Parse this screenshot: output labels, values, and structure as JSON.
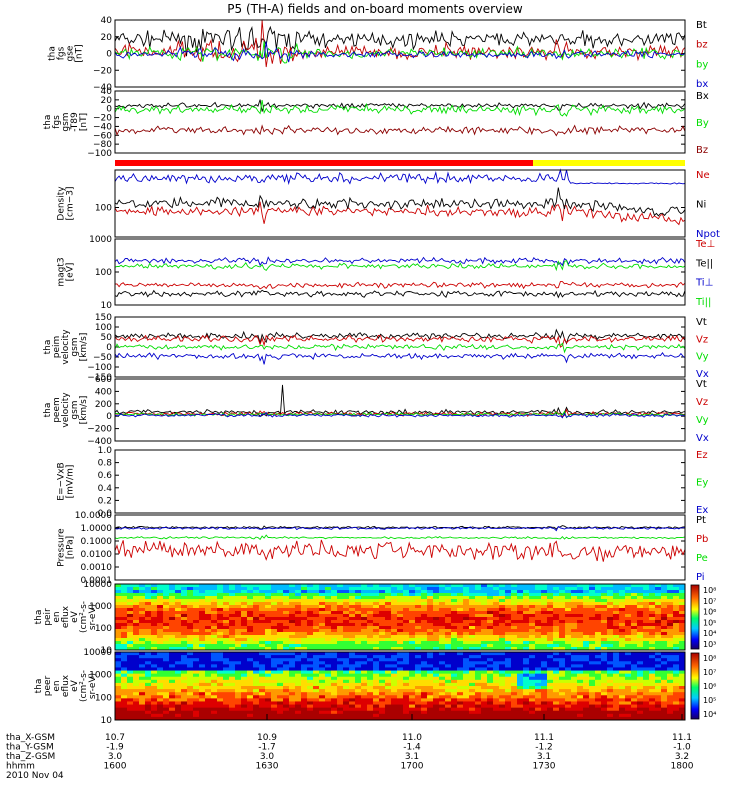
{
  "title": "P5 (TH-A) fields and on-board moments overview",
  "footer": {
    "rows": [
      {
        "label": "tha_X-GSM",
        "values": [
          "10.7",
          "10.9",
          "11.0",
          "11.1",
          "11.1"
        ]
      },
      {
        "label": "tha_Y-GSM",
        "values": [
          "-1.9",
          "-1.7",
          "-1.4",
          "-1.2",
          "-1.0"
        ]
      },
      {
        "label": "tha_Z-GSM",
        "values": [
          "3.0",
          "3.0",
          "3.1",
          "3.1",
          "3.2"
        ]
      },
      {
        "label": "hhmm",
        "values": [
          "1600",
          "1630",
          "1700",
          "1730",
          "1800"
        ]
      }
    ],
    "date": "2010 Nov 04"
  },
  "flag_colors": [
    "#ff0000",
    "#ffff00"
  ],
  "chart_data": [
    {
      "type": "line",
      "ylabel": [
        "tha",
        "fgs",
        "gse",
        "[nT]"
      ],
      "y_ticks": [
        "40",
        "20",
        "0",
        "−20",
        "−40"
      ],
      "ylim": [
        -40,
        40
      ],
      "series": [
        {
          "name": "Bt",
          "color": "#000000",
          "base": 17,
          "noise": 9
        },
        {
          "name": "bz",
          "color": "#c00000",
          "base": 2,
          "noise": 8
        },
        {
          "name": "by",
          "color": "#00dd00",
          "base": 0,
          "noise": 6
        },
        {
          "name": "bx",
          "color": "#0000cc",
          "base": -1,
          "noise": 4
        }
      ]
    },
    {
      "type": "line",
      "ylabel": [
        "tha",
        "fgs",
        "gsm",
        "-T89",
        "[nT]"
      ],
      "y_ticks": [
        "40",
        "20",
        "0",
        "−20",
        "−40",
        "−60",
        "−80",
        "−100"
      ],
      "ylim": [
        -110,
        40
      ],
      "series": [
        {
          "name": "Bx",
          "color": "#000000",
          "base": 5,
          "noise": 6
        },
        {
          "name": "By",
          "color": "#00dd00",
          "base": -5,
          "noise": 10
        },
        {
          "name": "Bz",
          "color": "#8b0000",
          "base": -55,
          "noise": 9
        }
      ]
    },
    {
      "type": "line",
      "ylabel": [
        "Density",
        "[cm−3]"
      ],
      "y_ticks": [
        "100"
      ],
      "series": [
        {
          "name": "Ne",
          "color": "#cc0000"
        },
        {
          "name": "Ni",
          "color": "#000000"
        },
        {
          "name": "Npot",
          "color": "#0000cc"
        }
      ]
    },
    {
      "type": "line",
      "ylabel": [
        "magt3",
        "[eV]"
      ],
      "y_ticks": [
        "1000",
        "100",
        "10"
      ],
      "yscale": "log",
      "ylim": [
        10,
        1000
      ],
      "series": [
        {
          "name": "Te⊥",
          "color": "#cc0000",
          "base": 40
        },
        {
          "name": "Te||",
          "color": "#000000",
          "base": 22
        },
        {
          "name": "Ti⊥",
          "color": "#0000cc",
          "base": 220
        },
        {
          "name": "Ti||",
          "color": "#00dd00",
          "base": 150
        }
      ]
    },
    {
      "type": "line",
      "ylabel": [
        "tha",
        "peim",
        "velocity",
        "gsm",
        "[km/s]"
      ],
      "y_ticks": [
        "150",
        "100",
        "50",
        "0",
        "−50",
        "−100",
        "−150"
      ],
      "ylim": [
        -150,
        150
      ],
      "series": [
        {
          "name": "Vt",
          "color": "#000000",
          "base": 55,
          "noise": 15
        },
        {
          "name": "Vz",
          "color": "#cc0000",
          "base": 40,
          "noise": 15
        },
        {
          "name": "Vy",
          "color": "#00dd00",
          "base": 0,
          "noise": 12
        },
        {
          "name": "Vx",
          "color": "#0000cc",
          "base": -45,
          "noise": 14
        }
      ]
    },
    {
      "type": "line",
      "ylabel": [
        "tha",
        "peem",
        "velocity",
        "gsm",
        "[km/s]"
      ],
      "y_ticks": [
        "600",
        "400",
        "200",
        "0",
        "−200",
        "−400"
      ],
      "ylim": [
        -450,
        600
      ],
      "series": [
        {
          "name": "Vt",
          "color": "#000000",
          "base": 40,
          "noise": 35
        },
        {
          "name": "Vz",
          "color": "#cc0000",
          "base": 10,
          "noise": 30
        },
        {
          "name": "Vy",
          "color": "#00dd00",
          "base": 0,
          "noise": 25
        },
        {
          "name": "Vx",
          "color": "#0000cc",
          "base": -15,
          "noise": 25
        }
      ]
    },
    {
      "type": "line",
      "ylabel": [
        "E=−VxB",
        "[mV/m]"
      ],
      "y_ticks": [
        "1.0",
        "0.8",
        "0.6",
        "0.4",
        "0.2",
        "0.0"
      ],
      "ylim": [
        0,
        1
      ],
      "series": [
        {
          "name": "Ez",
          "color": "#cc0000"
        },
        {
          "name": "Ey",
          "color": "#00dd00"
        },
        {
          "name": "Ex",
          "color": "#0000cc"
        }
      ]
    },
    {
      "type": "line",
      "ylabel": [
        "Pressure",
        "[nPa]"
      ],
      "y_ticks": [
        "10.0000",
        "1.0000",
        "0.1000",
        "0.0100",
        "0.0010",
        "0.0001"
      ],
      "yscale": "log",
      "ylim": [
        0.0001,
        10
      ],
      "series": [
        {
          "name": "Pt",
          "color": "#000000",
          "base": 1.1
        },
        {
          "name": "Pb",
          "color": "#cc0000",
          "base": 0.03
        },
        {
          "name": "Pe",
          "color": "#00dd00",
          "base": 0.18
        },
        {
          "name": "Pi",
          "color": "#0000cc",
          "base": 0.95
        }
      ]
    },
    {
      "type": "heatmap",
      "ylabel": [
        "tha",
        "peir",
        "en",
        "eflux",
        "eV",
        "(cm²-s-",
        "sr-eV)"
      ],
      "y_ticks": [
        "10000",
        "1000",
        "100",
        "10"
      ],
      "yscale": "log",
      "colorbar_ticks": [
        "10⁸",
        "10⁷",
        "10⁶",
        "10⁵",
        "10⁴",
        "10³"
      ]
    },
    {
      "type": "heatmap",
      "ylabel": [
        "tha",
        "peer",
        "en",
        "eflux",
        "eV",
        "(cm²-s-",
        "sr-eV)"
      ],
      "y_ticks": [
        "10000",
        "1000",
        "100",
        "10"
      ],
      "yscale": "log",
      "colorbar_ticks": [
        "10⁸",
        "10⁷",
        "10⁶",
        "10⁵",
        "10⁴"
      ]
    }
  ]
}
